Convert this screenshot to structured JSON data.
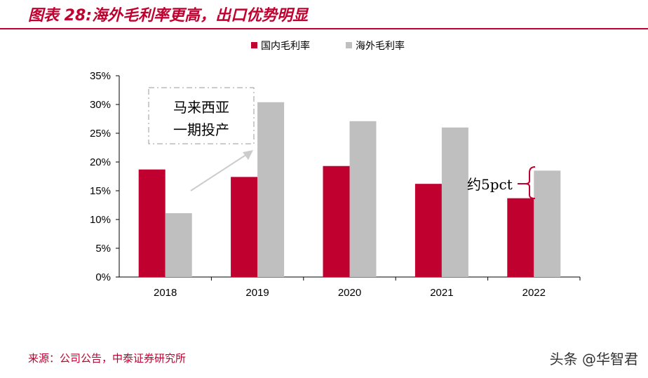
{
  "title": "图表 28:海外毛利率更高，出口优势明显",
  "source": "来源：公司公告，中泰证券研究所",
  "watermark": "头条 @华智君",
  "chart_data": {
    "type": "bar",
    "categories": [
      "2018",
      "2019",
      "2020",
      "2021",
      "2022"
    ],
    "series": [
      {
        "name": "国内毛利率",
        "color": "#C0002F",
        "values": [
          18.7,
          17.4,
          19.3,
          16.2,
          13.7
        ]
      },
      {
        "name": "海外毛利率",
        "color": "#BFBFBF",
        "values": [
          11.1,
          30.4,
          27.1,
          26.0,
          18.5
        ]
      }
    ],
    "ylim": [
      0,
      35
    ],
    "yticks": [
      "0%",
      "5%",
      "10%",
      "15%",
      "20%",
      "25%",
      "30%",
      "35%"
    ],
    "legend_position": "top",
    "grid": false,
    "annotations": {
      "box": [
        "马来西亚",
        "一期投产"
      ],
      "gap": "约5pct"
    }
  }
}
